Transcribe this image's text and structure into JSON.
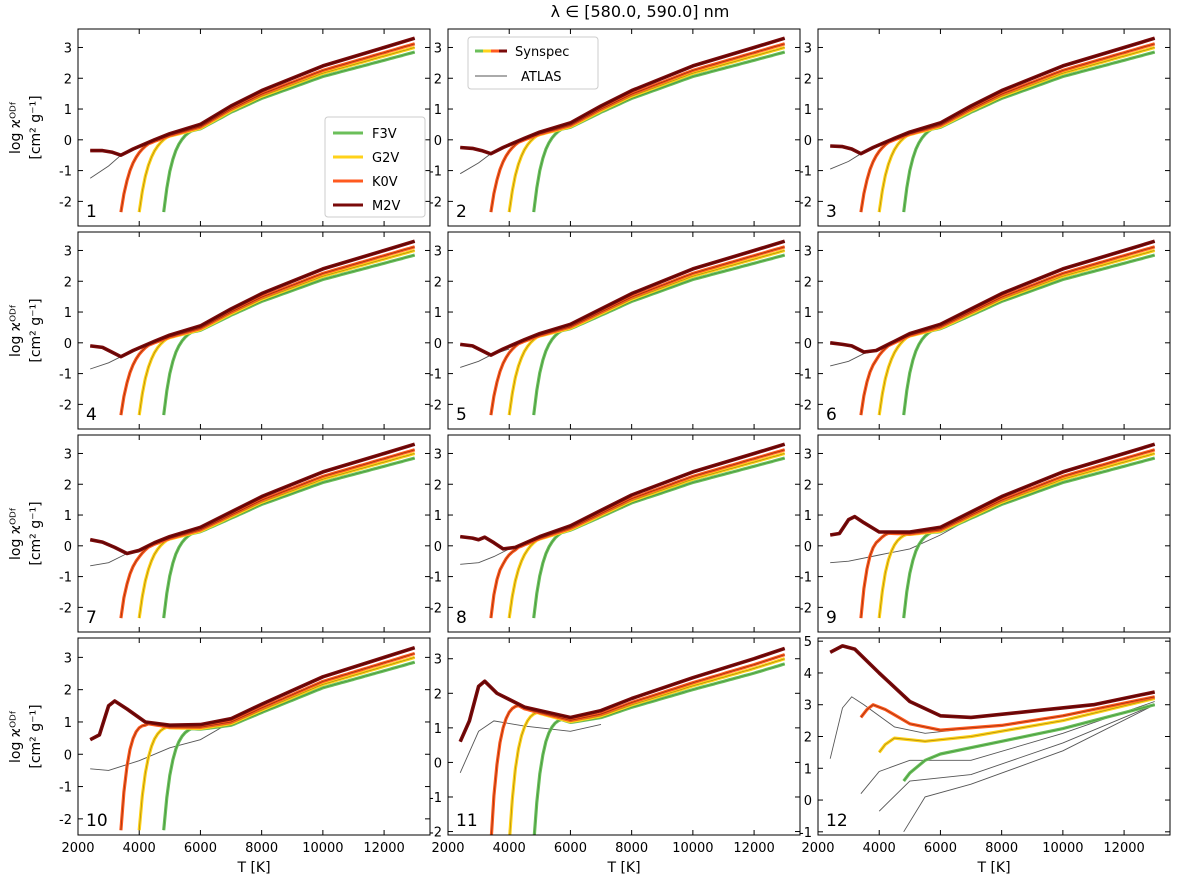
{
  "chart_data": {
    "type": "line",
    "title": "λ ∈ [580.0, 590.0] nm",
    "xlabel": "T [K]",
    "ylabel_line1": "log ϰᴼᴰᶠ",
    "ylabel_line2": "[cm² g⁻¹]",
    "xlim": [
      2000,
      13500
    ],
    "xticks": [
      2000,
      4000,
      6000,
      8000,
      10000,
      12000
    ],
    "xtick_labels": [
      "2000",
      "4000",
      "6000",
      "8000",
      "10000",
      "12000"
    ],
    "legend_series": {
      "entries": [
        {
          "name": "F3V",
          "color": "#6bbf5a"
        },
        {
          "name": "G2V",
          "color": "#ffd21a"
        },
        {
          "name": "K0V",
          "color": "#ff5a1f"
        },
        {
          "name": "M2V",
          "color": "#7a0a0a"
        }
      ]
    },
    "legend_codes": {
      "entries": [
        {
          "name": "Synspec"
        },
        {
          "name": "ATLAS",
          "color": "#555555"
        }
      ]
    },
    "series_meta": {
      "F3V": {
        "tstart": 4800,
        "endval": 2.85,
        "core_color": "#2e7d2e"
      },
      "G2V": {
        "tstart": 4000,
        "endval": 3.0,
        "core_color": "#806000"
      },
      "K0V": {
        "tstart": 3400,
        "endval": 3.12,
        "core_color": "#5a1a00"
      },
      "M2V": {
        "tstart": 2400,
        "endval": 3.3,
        "core_color": "#400000"
      }
    },
    "panels": [
      {
        "label": "1",
        "ylim": [
          -2.8,
          3.6
        ],
        "yticks": [
          -2,
          -1,
          0,
          1,
          2,
          3
        ],
        "M2V": [
          [
            2400,
            -0.35
          ],
          [
            2800,
            -0.35
          ],
          [
            3100,
            -0.4
          ],
          [
            3400,
            -0.5
          ],
          [
            3800,
            -0.3
          ],
          [
            4500,
            0.0
          ],
          [
            5000,
            0.2
          ],
          [
            6000,
            0.5
          ],
          [
            7000,
            1.1
          ],
          [
            8000,
            1.6
          ],
          [
            10000,
            2.4
          ],
          [
            12000,
            3.0
          ],
          [
            13000,
            3.3
          ]
        ],
        "ATLAS": [
          [
            2400,
            -1.25
          ],
          [
            3000,
            -0.85
          ],
          [
            3400,
            -0.5
          ],
          [
            4000,
            -0.2
          ]
        ]
      },
      {
        "label": "2",
        "ylim": [
          -2.8,
          3.6
        ],
        "yticks": [
          -2,
          -1,
          0,
          1,
          2,
          3
        ],
        "M2V": [
          [
            2400,
            -0.25
          ],
          [
            2800,
            -0.28
          ],
          [
            3100,
            -0.35
          ],
          [
            3400,
            -0.45
          ],
          [
            3800,
            -0.25
          ],
          [
            4500,
            0.05
          ],
          [
            5000,
            0.25
          ],
          [
            6000,
            0.55
          ],
          [
            7000,
            1.1
          ],
          [
            8000,
            1.6
          ],
          [
            10000,
            2.4
          ],
          [
            12000,
            3.0
          ],
          [
            13000,
            3.3
          ]
        ],
        "ATLAS": [
          [
            2400,
            -1.1
          ],
          [
            3000,
            -0.75
          ],
          [
            3400,
            -0.45
          ],
          [
            4000,
            -0.2
          ]
        ]
      },
      {
        "label": "3",
        "ylim": [
          -2.8,
          3.6
        ],
        "yticks": [
          -2,
          -1,
          0,
          1,
          2,
          3
        ],
        "M2V": [
          [
            2400,
            -0.2
          ],
          [
            2800,
            -0.22
          ],
          [
            3100,
            -0.3
          ],
          [
            3400,
            -0.45
          ],
          [
            3800,
            -0.25
          ],
          [
            4500,
            0.05
          ],
          [
            5000,
            0.25
          ],
          [
            6000,
            0.55
          ],
          [
            7000,
            1.1
          ],
          [
            8000,
            1.6
          ],
          [
            10000,
            2.4
          ],
          [
            12000,
            3.0
          ],
          [
            13000,
            3.3
          ]
        ],
        "ATLAS": [
          [
            2400,
            -0.95
          ],
          [
            3000,
            -0.7
          ],
          [
            3400,
            -0.45
          ],
          [
            4000,
            -0.2
          ]
        ]
      },
      {
        "label": "4",
        "ylim": [
          -2.8,
          3.6
        ],
        "yticks": [
          -2,
          -1,
          0,
          1,
          2,
          3
        ],
        "M2V": [
          [
            2400,
            -0.1
          ],
          [
            2800,
            -0.15
          ],
          [
            3100,
            -0.3
          ],
          [
            3400,
            -0.45
          ],
          [
            3800,
            -0.25
          ],
          [
            4500,
            0.05
          ],
          [
            5000,
            0.25
          ],
          [
            6000,
            0.55
          ],
          [
            7000,
            1.1
          ],
          [
            8000,
            1.6
          ],
          [
            10000,
            2.4
          ],
          [
            12000,
            3.0
          ],
          [
            13000,
            3.3
          ]
        ],
        "ATLAS": [
          [
            2400,
            -0.85
          ],
          [
            3000,
            -0.65
          ],
          [
            3400,
            -0.45
          ],
          [
            4000,
            -0.2
          ]
        ]
      },
      {
        "label": "5",
        "ylim": [
          -2.8,
          3.6
        ],
        "yticks": [
          -2,
          -1,
          0,
          1,
          2,
          3
        ],
        "M2V": [
          [
            2400,
            -0.05
          ],
          [
            2800,
            -0.1
          ],
          [
            3100,
            -0.25
          ],
          [
            3400,
            -0.4
          ],
          [
            3800,
            -0.2
          ],
          [
            4500,
            0.1
          ],
          [
            5000,
            0.3
          ],
          [
            6000,
            0.6
          ],
          [
            7000,
            1.1
          ],
          [
            8000,
            1.6
          ],
          [
            10000,
            2.4
          ],
          [
            12000,
            3.0
          ],
          [
            13000,
            3.3
          ]
        ],
        "ATLAS": [
          [
            2400,
            -0.8
          ],
          [
            3000,
            -0.6
          ],
          [
            3400,
            -0.4
          ],
          [
            4000,
            -0.2
          ]
        ]
      },
      {
        "label": "6",
        "ylim": [
          -2.8,
          3.6
        ],
        "yticks": [
          -2,
          -1,
          0,
          1,
          2,
          3
        ],
        "M2V": [
          [
            2400,
            0.0
          ],
          [
            2800,
            -0.05
          ],
          [
            3100,
            -0.1
          ],
          [
            3500,
            -0.3
          ],
          [
            3900,
            -0.25
          ],
          [
            4500,
            0.05
          ],
          [
            5000,
            0.3
          ],
          [
            6000,
            0.6
          ],
          [
            7000,
            1.1
          ],
          [
            8000,
            1.6
          ],
          [
            10000,
            2.4
          ],
          [
            12000,
            3.0
          ],
          [
            13000,
            3.3
          ]
        ],
        "ATLAS": [
          [
            2400,
            -0.75
          ],
          [
            3000,
            -0.6
          ],
          [
            3500,
            -0.35
          ],
          [
            4000,
            -0.25
          ]
        ]
      },
      {
        "label": "7",
        "ylim": [
          -2.8,
          3.6
        ],
        "yticks": [
          -2,
          -1,
          0,
          1,
          2,
          3
        ],
        "M2V": [
          [
            2400,
            0.2
          ],
          [
            2800,
            0.12
          ],
          [
            3200,
            -0.05
          ],
          [
            3600,
            -0.25
          ],
          [
            4000,
            -0.15
          ],
          [
            4500,
            0.1
          ],
          [
            5000,
            0.3
          ],
          [
            6000,
            0.6
          ],
          [
            7000,
            1.1
          ],
          [
            8000,
            1.6
          ],
          [
            10000,
            2.4
          ],
          [
            12000,
            3.0
          ],
          [
            13000,
            3.3
          ]
        ],
        "ATLAS": [
          [
            2400,
            -0.65
          ],
          [
            3000,
            -0.55
          ],
          [
            3600,
            -0.25
          ],
          [
            4000,
            -0.2
          ]
        ]
      },
      {
        "label": "8",
        "ylim": [
          -2.8,
          3.6
        ],
        "yticks": [
          -2,
          -1,
          0,
          1,
          2,
          3
        ],
        "M2V": [
          [
            2400,
            0.3
          ],
          [
            2800,
            0.25
          ],
          [
            3000,
            0.2
          ],
          [
            3200,
            0.28
          ],
          [
            3500,
            0.1
          ],
          [
            3800,
            -0.1
          ],
          [
            4200,
            -0.05
          ],
          [
            5000,
            0.3
          ],
          [
            6000,
            0.65
          ],
          [
            7000,
            1.15
          ],
          [
            8000,
            1.65
          ],
          [
            10000,
            2.4
          ],
          [
            12000,
            3.0
          ],
          [
            13000,
            3.3
          ]
        ],
        "ATLAS": [
          [
            2400,
            -0.6
          ],
          [
            3000,
            -0.55
          ],
          [
            3500,
            -0.35
          ],
          [
            4000,
            -0.1
          ]
        ]
      },
      {
        "label": "9",
        "ylim": [
          -2.8,
          3.6
        ],
        "yticks": [
          -2,
          -1,
          0,
          1,
          2,
          3
        ],
        "M2V": [
          [
            2400,
            0.35
          ],
          [
            2700,
            0.4
          ],
          [
            3000,
            0.85
          ],
          [
            3200,
            0.95
          ],
          [
            3500,
            0.75
          ],
          [
            4000,
            0.45
          ],
          [
            5000,
            0.45
          ],
          [
            6000,
            0.6
          ],
          [
            7000,
            1.1
          ],
          [
            8000,
            1.6
          ],
          [
            10000,
            2.4
          ],
          [
            12000,
            3.0
          ],
          [
            13000,
            3.3
          ]
        ],
        "ATLAS": [
          [
            2400,
            -0.55
          ],
          [
            3000,
            -0.5
          ],
          [
            4000,
            -0.3
          ],
          [
            5000,
            -0.1
          ],
          [
            6000,
            0.35
          ],
          [
            7000,
            0.9
          ]
        ]
      },
      {
        "label": "10",
        "ylim": [
          -2.5,
          3.6
        ],
        "yticks": [
          -2,
          -1,
          0,
          1,
          2,
          3
        ],
        "M2V": [
          [
            2400,
            0.45
          ],
          [
            2700,
            0.6
          ],
          [
            3000,
            1.5
          ],
          [
            3200,
            1.65
          ],
          [
            3600,
            1.4
          ],
          [
            4200,
            1.0
          ],
          [
            5000,
            0.9
          ],
          [
            6000,
            0.92
          ],
          [
            7000,
            1.1
          ],
          [
            8000,
            1.55
          ],
          [
            10000,
            2.4
          ],
          [
            12000,
            3.0
          ],
          [
            13000,
            3.3
          ]
        ],
        "ATLAS": [
          [
            2400,
            -0.45
          ],
          [
            3000,
            -0.5
          ],
          [
            4000,
            -0.2
          ],
          [
            5000,
            0.2
          ],
          [
            6000,
            0.45
          ],
          [
            7000,
            1.0
          ]
        ]
      },
      {
        "label": "11",
        "ylim": [
          -2.1,
          3.6
        ],
        "yticks": [
          -2,
          -1,
          0,
          1,
          2,
          3
        ],
        "M2V": [
          [
            2400,
            0.6
          ],
          [
            2700,
            1.2
          ],
          [
            3000,
            2.2
          ],
          [
            3200,
            2.35
          ],
          [
            3600,
            2.0
          ],
          [
            4500,
            1.6
          ],
          [
            6000,
            1.3
          ],
          [
            7000,
            1.5
          ],
          [
            8000,
            1.85
          ],
          [
            10000,
            2.45
          ],
          [
            12000,
            3.0
          ],
          [
            13000,
            3.3
          ]
        ],
        "ATLAS": [
          [
            2400,
            -0.3
          ],
          [
            3000,
            0.9
          ],
          [
            3500,
            1.2
          ],
          [
            4500,
            1.05
          ],
          [
            6000,
            0.9
          ],
          [
            7000,
            1.1
          ]
        ]
      },
      {
        "label": "12",
        "ylim": [
          -1.1,
          5.1
        ],
        "yticks": [
          -1,
          0,
          1,
          2,
          3,
          4,
          5
        ],
        "M2V": [
          [
            2400,
            4.65
          ],
          [
            2800,
            4.85
          ],
          [
            3200,
            4.75
          ],
          [
            4000,
            4.0
          ],
          [
            5000,
            3.1
          ],
          [
            6000,
            2.65
          ],
          [
            7000,
            2.6
          ],
          [
            9000,
            2.8
          ],
          [
            11000,
            3.0
          ],
          [
            13000,
            3.4
          ]
        ],
        "K0V": [
          [
            3400,
            2.6
          ],
          [
            3600,
            2.85
          ],
          [
            3800,
            3.0
          ],
          [
            4200,
            2.85
          ],
          [
            5000,
            2.4
          ],
          [
            6000,
            2.2
          ],
          [
            8000,
            2.35
          ],
          [
            10000,
            2.65
          ],
          [
            13000,
            3.25
          ]
        ],
        "G2V": [
          [
            4000,
            1.5
          ],
          [
            4200,
            1.75
          ],
          [
            4500,
            1.95
          ],
          [
            5500,
            1.85
          ],
          [
            7000,
            2.0
          ],
          [
            10000,
            2.5
          ],
          [
            13000,
            3.2
          ]
        ],
        "F3V": [
          [
            4800,
            0.6
          ],
          [
            5000,
            0.85
          ],
          [
            5500,
            1.25
          ],
          [
            6000,
            1.45
          ],
          [
            8000,
            1.85
          ],
          [
            10000,
            2.25
          ],
          [
            13000,
            3.0
          ]
        ],
        "ATLAS_multi": [
          [
            [
              2400,
              1.3
            ],
            [
              2800,
              2.9
            ],
            [
              3100,
              3.25
            ],
            [
              3500,
              3.0
            ],
            [
              4500,
              2.3
            ],
            [
              5500,
              2.1
            ],
            [
              6500,
              2.2
            ]
          ],
          [
            [
              3400,
              0.2
            ],
            [
              4000,
              0.9
            ],
            [
              5000,
              1.25
            ],
            [
              7000,
              1.25
            ],
            [
              10000,
              2.1
            ],
            [
              13000,
              3.1
            ]
          ],
          [
            [
              4000,
              -0.35
            ],
            [
              5000,
              0.6
            ],
            [
              7000,
              0.8
            ],
            [
              10000,
              1.8
            ],
            [
              13000,
              3.0
            ]
          ],
          [
            [
              4800,
              -1.0
            ],
            [
              5500,
              0.1
            ],
            [
              7000,
              0.5
            ],
            [
              10000,
              1.55
            ],
            [
              13000,
              3.0
            ]
          ]
        ]
      }
    ]
  }
}
